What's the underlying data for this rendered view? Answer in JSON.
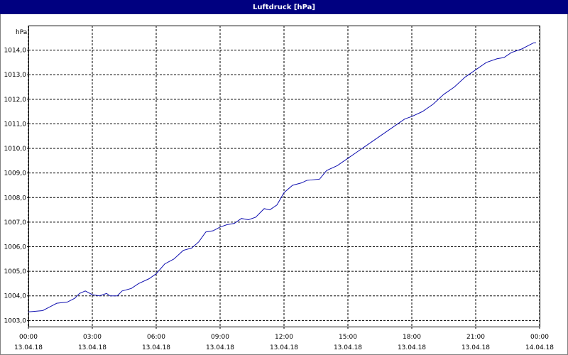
{
  "chart_data": {
    "type": "line",
    "title": "Luftdruck [hPa]",
    "y_label": "hPa",
    "x": [
      0,
      0.67,
      1,
      1.33,
      1.83,
      2.17,
      2.4,
      2.67,
      3,
      3.33,
      3.67,
      3.83,
      4.17,
      4.4,
      4.83,
      5.17,
      5.67,
      6,
      6.4,
      6.83,
      7.27,
      7.67,
      8,
      8.33,
      8.67,
      9,
      9.33,
      9.67,
      10,
      10.33,
      10.67,
      11.07,
      11.33,
      11.67,
      12,
      12.4,
      12.83,
      13.07,
      13.67,
      14,
      14.5,
      15,
      15.67,
      16.17,
      16.67,
      17.17,
      17.67,
      18,
      18.5,
      19,
      19.5,
      20,
      20.5,
      21,
      21.5,
      22,
      22.33,
      22.67,
      23.17,
      23.5,
      23.73,
      23.83
    ],
    "series": [
      {
        "name": "Luftdruck",
        "color": "#1010b0",
        "values": [
          1003.35,
          1003.4,
          1003.55,
          1003.7,
          1003.75,
          1003.9,
          1004.1,
          1004.2,
          1004.05,
          1004.0,
          1004.1,
          1004.0,
          1004.0,
          1004.2,
          1004.3,
          1004.5,
          1004.7,
          1004.9,
          1005.3,
          1005.5,
          1005.85,
          1005.95,
          1006.2,
          1006.6,
          1006.65,
          1006.8,
          1006.9,
          1006.95,
          1007.15,
          1007.1,
          1007.2,
          1007.55,
          1007.5,
          1007.7,
          1008.2,
          1008.5,
          1008.6,
          1008.7,
          1008.75,
          1009.1,
          1009.3,
          1009.6,
          1010.0,
          1010.3,
          1010.6,
          1010.9,
          1011.2,
          1011.3,
          1011.5,
          1011.8,
          1012.2,
          1012.5,
          1012.9,
          1013.2,
          1013.5,
          1013.65,
          1013.7,
          1013.9,
          1014.05,
          1014.2,
          1014.3,
          1014.3
        ]
      }
    ],
    "xlim": [
      0,
      24
    ],
    "xticks": [
      {
        "value": 0,
        "label": "00:00\n13.04.18"
      },
      {
        "value": 3,
        "label": "03:00\n13.04.18"
      },
      {
        "value": 6,
        "label": "06:00\n13.04.18"
      },
      {
        "value": 9,
        "label": "09:00\n13.04.18"
      },
      {
        "value": 12,
        "label": "12:00\n13.04.18"
      },
      {
        "value": 15,
        "label": "15:00\n13.04.18"
      },
      {
        "value": 18,
        "label": "18:00\n13.04.18"
      },
      {
        "value": 21,
        "label": "21:00\n13.04.18"
      },
      {
        "value": 24,
        "label": "00:00\n14.04.18"
      }
    ],
    "ylim": [
      1002.75,
      1015
    ],
    "yticks": [
      {
        "value": 1003,
        "label": "1003,0"
      },
      {
        "value": 1004,
        "label": "1004,0"
      },
      {
        "value": 1005,
        "label": "1005,0"
      },
      {
        "value": 1006,
        "label": "1006,0"
      },
      {
        "value": 1007,
        "label": "1007,0"
      },
      {
        "value": 1008,
        "label": "1008,0"
      },
      {
        "value": 1009,
        "label": "1009,0"
      },
      {
        "value": 1010,
        "label": "1010,0"
      },
      {
        "value": 1011,
        "label": "1011,0"
      },
      {
        "value": 1012,
        "label": "1012,0"
      },
      {
        "value": 1013,
        "label": "1013,0"
      },
      {
        "value": 1014,
        "label": "1014,0"
      }
    ],
    "grid": true
  }
}
